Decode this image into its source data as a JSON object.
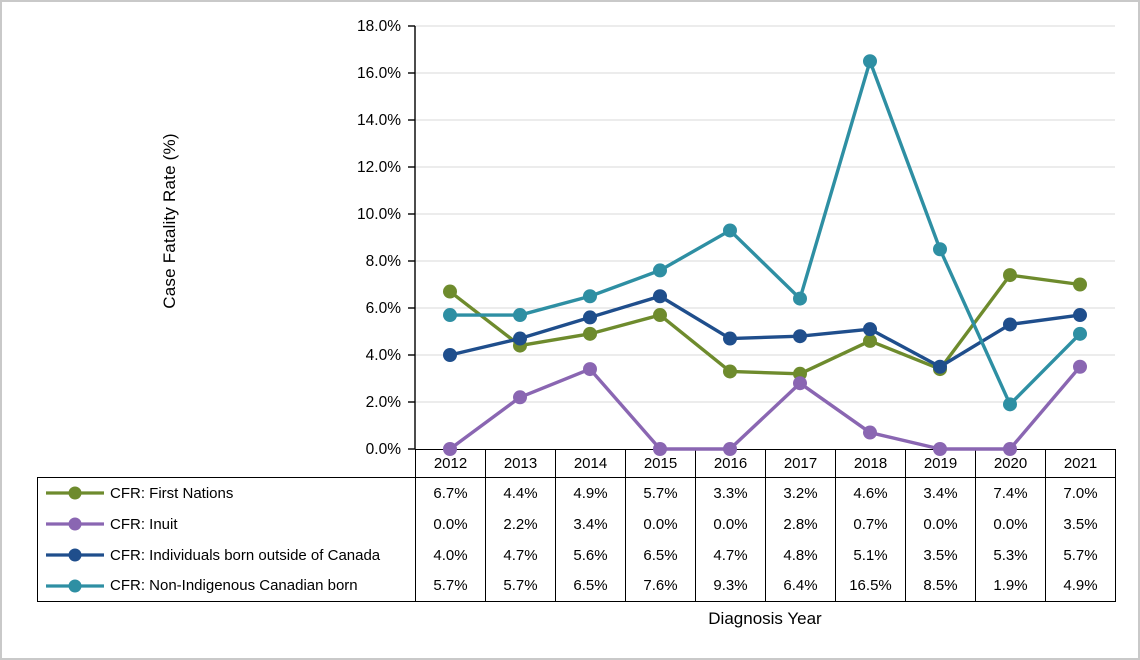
{
  "chart_data": {
    "type": "line",
    "title": "",
    "xlabel": "Diagnosis Year",
    "ylabel": "Case Fatality Rate (%)",
    "categories": [
      "2012",
      "2013",
      "2014",
      "2015",
      "2016",
      "2017",
      "2018",
      "2019",
      "2020",
      "2021"
    ],
    "series": [
      {
        "name": "CFR: First Nations",
        "color": "#6E8B2D",
        "values": [
          6.7,
          4.4,
          4.9,
          5.7,
          3.3,
          3.2,
          4.6,
          3.4,
          7.4,
          7.0
        ]
      },
      {
        "name": "CFR: Inuit",
        "color": "#8A66B2",
        "values": [
          0.0,
          2.2,
          3.4,
          0.0,
          0.0,
          2.8,
          0.7,
          0.0,
          0.0,
          3.5
        ]
      },
      {
        "name": "CFR: Individuals born outside of Canada",
        "color": "#1F4E8C",
        "values": [
          4.0,
          4.7,
          5.6,
          6.5,
          4.7,
          4.8,
          5.1,
          3.5,
          5.3,
          5.7
        ]
      },
      {
        "name": "CFR: Non-Indigenous Canadian born",
        "color": "#2E8FA3",
        "values": [
          5.7,
          5.7,
          6.5,
          7.6,
          9.3,
          6.4,
          16.5,
          8.5,
          1.9,
          4.9
        ]
      }
    ],
    "y_ticks": [
      "0.0%",
      "2.0%",
      "4.0%",
      "6.0%",
      "8.0%",
      "10.0%",
      "12.0%",
      "14.0%",
      "16.0%",
      "18.0%"
    ],
    "ylim": [
      0,
      18
    ],
    "y_step": 2,
    "value_suffix": "%",
    "grid": true,
    "legend_position": "table-left",
    "colors": {
      "gridline": "#D9D9D9",
      "axis": "#000000",
      "table_border": "#000000",
      "text": "#000000",
      "canvas_border": "#C9C9C9"
    }
  }
}
